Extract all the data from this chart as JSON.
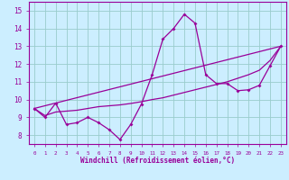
{
  "xlabel": "Windchill (Refroidissement éolien,°C)",
  "xlim": [
    -0.5,
    23.5
  ],
  "ylim": [
    7.5,
    15.5
  ],
  "yticks": [
    8,
    9,
    10,
    11,
    12,
    13,
    14,
    15
  ],
  "xticks": [
    0,
    1,
    2,
    3,
    4,
    5,
    6,
    7,
    8,
    9,
    10,
    11,
    12,
    13,
    14,
    15,
    16,
    17,
    18,
    19,
    20,
    21,
    22,
    23
  ],
  "bg_color": "#cceeff",
  "line_color": "#990099",
  "grid_color": "#99cccc",
  "line1_x": [
    0,
    1,
    2,
    3,
    4,
    5,
    6,
    7,
    8,
    9,
    10,
    11,
    12,
    13,
    14,
    15,
    16,
    17,
    18,
    19,
    20,
    21,
    22,
    23
  ],
  "line1_y": [
    9.5,
    9.0,
    9.8,
    8.6,
    8.7,
    9.0,
    8.7,
    8.3,
    7.75,
    8.6,
    9.75,
    11.4,
    13.4,
    14.0,
    14.8,
    14.3,
    11.4,
    10.9,
    10.9,
    10.5,
    10.55,
    10.8,
    11.9,
    13.0
  ],
  "line2_x": [
    0,
    1,
    2,
    3,
    4,
    5,
    6,
    7,
    8,
    9,
    10,
    11,
    12,
    13,
    14,
    15,
    16,
    17,
    18,
    19,
    20,
    21,
    22,
    23
  ],
  "line2_y": [
    9.5,
    9.1,
    9.3,
    9.35,
    9.4,
    9.5,
    9.6,
    9.65,
    9.7,
    9.78,
    9.88,
    10.0,
    10.1,
    10.25,
    10.4,
    10.55,
    10.7,
    10.85,
    11.0,
    11.2,
    11.4,
    11.65,
    12.2,
    13.0
  ],
  "line3_x": [
    0,
    23
  ],
  "line3_y": [
    9.5,
    13.0
  ]
}
